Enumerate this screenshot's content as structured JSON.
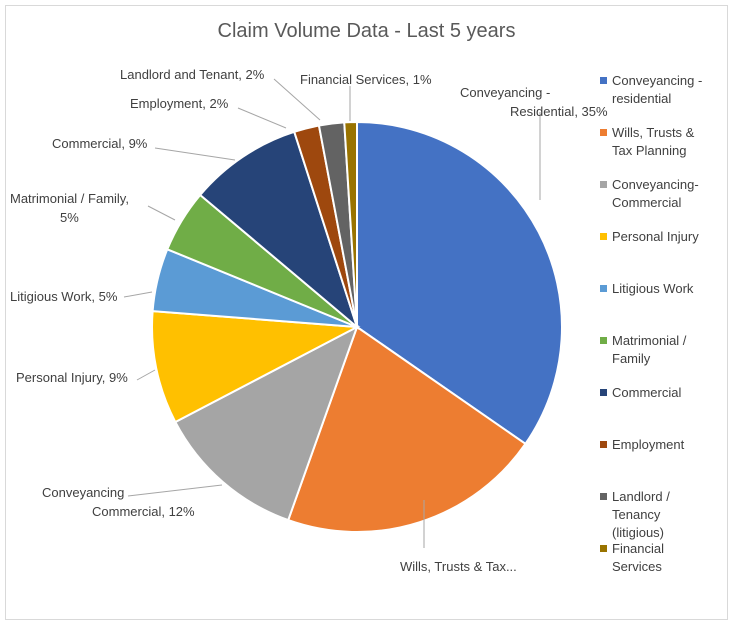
{
  "chart_data": {
    "type": "pie",
    "title": "Claim Volume Data  - Last 5 years",
    "slices": [
      {
        "legend": "Conveyancing -\nresidential",
        "label": "Conveyancing -\nResidential, 35%",
        "value": 35,
        "color": "#4472c4"
      },
      {
        "legend": "Wills, Trusts &\nTax Planning",
        "label": "Wills, Trusts & Tax...",
        "value": 21,
        "color": "#ed7d31"
      },
      {
        "legend": "Conveyancing-\nCommercial",
        "label": "Conveyancing\nCommercial, 12%",
        "value": 12,
        "color": "#a5a5a5"
      },
      {
        "legend": "Personal Injury",
        "label": "Personal Injury, 9%",
        "value": 9,
        "color": "#ffc000"
      },
      {
        "legend": "Litigious Work",
        "label": "Litigious Work, 5%",
        "value": 5,
        "color": "#5b9bd5"
      },
      {
        "legend": "Matrimonial /\nFamily",
        "label": "Matrimonial / Family,\n5%",
        "value": 5,
        "color": "#70ad47"
      },
      {
        "legend": "Commercial",
        "label": "Commercial, 9%",
        "value": 9,
        "color": "#264478"
      },
      {
        "legend": "Employment",
        "label": "Employment, 2%",
        "value": 2,
        "color": "#9e480e"
      },
      {
        "legend": "Landlord /\nTenancy\n(litigious)",
        "label": "Landlord and Tenant, 2%",
        "value": 2,
        "color": "#636363"
      },
      {
        "legend": "Financial\nServices",
        "label": "Financial Services, 1%",
        "value": 1,
        "color": "#997300"
      }
    ],
    "legend_position": "right"
  }
}
